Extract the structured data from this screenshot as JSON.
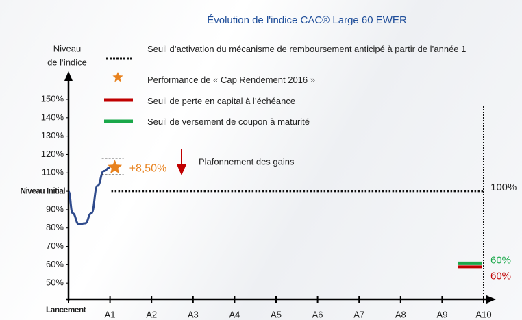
{
  "chart_data": {
    "type": "line",
    "title": "Évolution  de l'indice CAC® Large 60 EWER",
    "y_axis_label": [
      "Niveau",
      "de l’indice"
    ],
    "xlim": [
      0,
      10
    ],
    "xticks": [
      {
        "value": 0,
        "label": "Lancement"
      },
      {
        "value": 1,
        "label": "A1"
      },
      {
        "value": 2,
        "label": "A2"
      },
      {
        "value": 3,
        "label": "A3"
      },
      {
        "value": 4,
        "label": "A4"
      },
      {
        "value": 5,
        "label": "A5"
      },
      {
        "value": 6,
        "label": "A6"
      },
      {
        "value": 7,
        "label": "A7"
      },
      {
        "value": 8,
        "label": "A8"
      },
      {
        "value": 9,
        "label": "A9"
      },
      {
        "value": 10,
        "label": "A10"
      }
    ],
    "ylim": [
      40,
      150
    ],
    "yticks": [
      {
        "value": 50,
        "label": "50%"
      },
      {
        "value": 60,
        "label": "60%"
      },
      {
        "value": 70,
        "label": "70%"
      },
      {
        "value": 80,
        "label": "80%"
      },
      {
        "value": 90,
        "label": "90%"
      },
      {
        "value": 100,
        "label": "Niveau Initial"
      },
      {
        "value": 110,
        "label": "110%"
      },
      {
        "value": 120,
        "label": "120%"
      },
      {
        "value": 130,
        "label": "130%"
      },
      {
        "value": 140,
        "label": "140%"
      },
      {
        "value": 150,
        "label": "150%"
      }
    ],
    "series": [
      {
        "color": "#2e4a8c",
        "x": [
          0,
          0.1,
          0.25,
          0.4,
          0.55,
          0.7,
          0.85,
          1
        ],
        "values": [
          100,
          88,
          82,
          82.5,
          88,
          103,
          111,
          113
        ]
      }
    ],
    "legend": [
      {
        "label": "Seuil d’activation du mécanisme de remboursement anticipé à partir de l’année 1",
        "marker": "dotted",
        "color": "#111111"
      },
      {
        "label": "Performance de « Cap Rendement 2016 »",
        "marker": "star",
        "color": "#e8821e"
      },
      {
        "label": "Seuil de perte en capital à l’échéance",
        "marker": "line",
        "color": "#c00000"
      },
      {
        "label": "Seuil de versement de coupon à maturité",
        "marker": "line",
        "color": "#1aa84a"
      }
    ],
    "performance": {
      "x": 1,
      "value": 113,
      "label": "+8,50%",
      "color": "#e8821e"
    },
    "cap": {
      "label": "Plafonnement des gains",
      "upper": 118,
      "lower": 109,
      "color": "#c00000"
    },
    "activation": {
      "value": 100,
      "label": "100%",
      "from": 1,
      "to": 10
    },
    "coupon": {
      "value": 60,
      "label": "60%",
      "color": "#1aa84a"
    },
    "loss": {
      "value": 60,
      "label": "60%",
      "color": "#c00000"
    }
  }
}
